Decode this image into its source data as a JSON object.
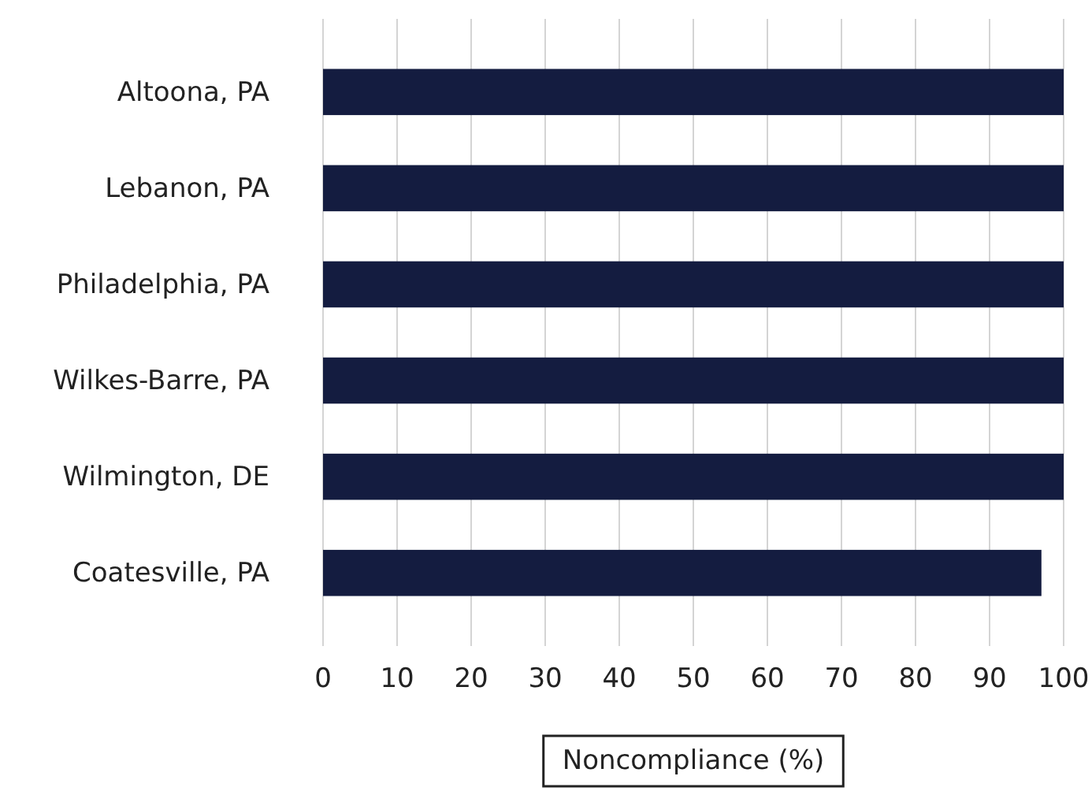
{
  "chart_data": {
    "type": "bar",
    "orientation": "horizontal",
    "xlabel": "Noncompliance (%)",
    "categories": [
      "Altoona, PA",
      "Lebanon, PA",
      "Philadelphia, PA",
      "Wilkes-Barre, PA",
      "Wilmington, DE",
      "Coatesville, PA"
    ],
    "values": [
      100,
      100,
      100,
      100,
      100,
      97
    ],
    "color": "#141c40",
    "xlim": [
      0,
      100
    ],
    "xticks": [
      0,
      10,
      20,
      30,
      40,
      50,
      60,
      70,
      80,
      90,
      100
    ],
    "grid": "x"
  }
}
